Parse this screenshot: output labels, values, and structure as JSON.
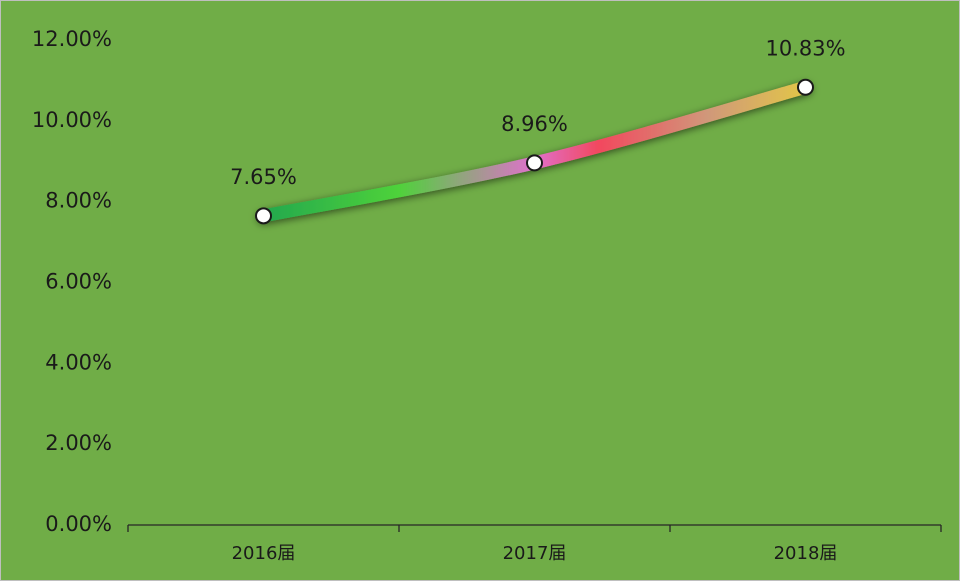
{
  "chart_data": {
    "type": "line",
    "categories": [
      "2016届",
      "2017届",
      "2018届"
    ],
    "values": [
      7.65,
      8.96,
      10.83
    ],
    "value_labels": [
      "7.65%",
      "8.96%",
      "10.83%"
    ],
    "ylim": [
      0,
      12
    ],
    "yticks": [
      {
        "value": 0,
        "label": "0.00%"
      },
      {
        "value": 2,
        "label": "2.00%"
      },
      {
        "value": 4,
        "label": "4.00%"
      },
      {
        "value": 6,
        "label": "6.00%"
      },
      {
        "value": 8,
        "label": "8.00%"
      },
      {
        "value": 10,
        "label": "10.00%"
      },
      {
        "value": 12,
        "label": "12.00%"
      }
    ]
  }
}
